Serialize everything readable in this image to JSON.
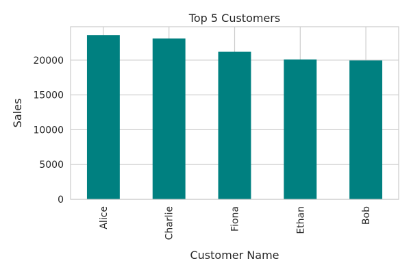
{
  "chart_data": {
    "type": "bar",
    "title": "Top 5 Customers",
    "xlabel": "Customer Name",
    "ylabel": "Sales",
    "categories": [
      "Alice",
      "Charlie",
      "Fiona",
      "Ethan",
      "Bob"
    ],
    "values": [
      23600,
      23100,
      21200,
      20100,
      19950
    ],
    "ylim": [
      0,
      24800
    ],
    "yticks": [
      0,
      5000,
      10000,
      15000,
      20000
    ],
    "ytick_labels": [
      "0",
      "5000",
      "10000",
      "15000",
      "20000"
    ],
    "grid": true,
    "legend": "none",
    "colors": {
      "bar": "#008080",
      "grid": "#cccccc",
      "spine": "#cccccc",
      "text": "#262626"
    }
  }
}
